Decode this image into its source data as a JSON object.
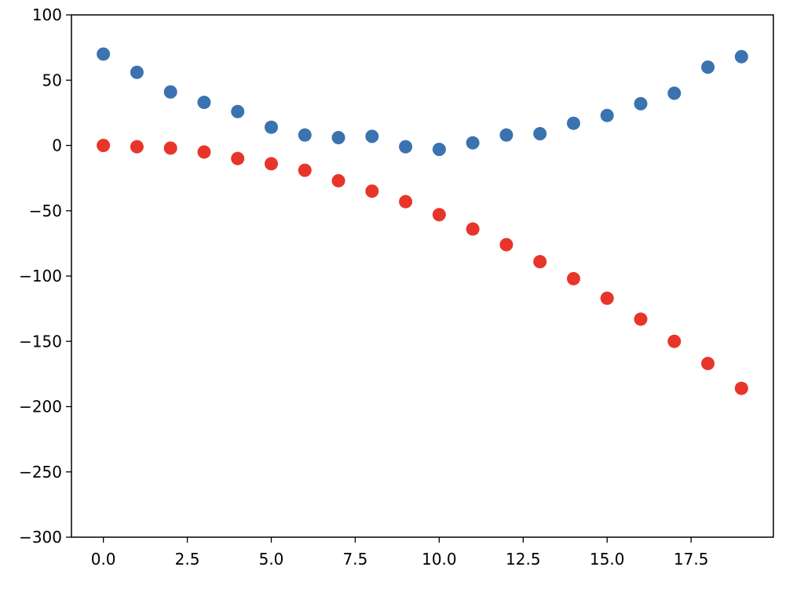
{
  "chart_data": {
    "type": "scatter",
    "title": "",
    "xlabel": "",
    "ylabel": "",
    "xlim": [
      -0.95,
      19.95
    ],
    "ylim": [
      -300,
      100
    ],
    "grid": false,
    "x_ticks": [
      0,
      2.5,
      5,
      7.5,
      10,
      12.5,
      15,
      17.5
    ],
    "x_tick_labels": [
      "0.0",
      "2.5",
      "5.0",
      "7.5",
      "10.0",
      "12.5",
      "15.0",
      "17.5"
    ],
    "y_ticks": [
      100,
      50,
      0,
      -50,
      -100,
      -150,
      -200,
      -250,
      -300
    ],
    "y_tick_labels": [
      "100",
      "50",
      "0",
      "−50",
      "−100",
      "−150",
      "−200",
      "−250",
      "−300"
    ],
    "x": [
      0,
      1,
      2,
      3,
      4,
      5,
      6,
      7,
      8,
      9,
      10,
      11,
      12,
      13,
      14,
      15,
      16,
      17,
      18,
      19
    ],
    "series": [
      {
        "color": "#3a73b0",
        "values": [
          70,
          56,
          41,
          33,
          26,
          14,
          8,
          6,
          7,
          -1,
          -3,
          2,
          8,
          9,
          17,
          23,
          32,
          40,
          60,
          68
        ]
      },
      {
        "color": "#e8352a",
        "values": [
          0,
          -1,
          -2,
          -5,
          -10,
          -14,
          -19,
          -27,
          -35,
          -43,
          -53,
          -64,
          -76,
          -89,
          -102,
          -117,
          -133,
          -150,
          -167,
          -186
        ]
      }
    ]
  }
}
